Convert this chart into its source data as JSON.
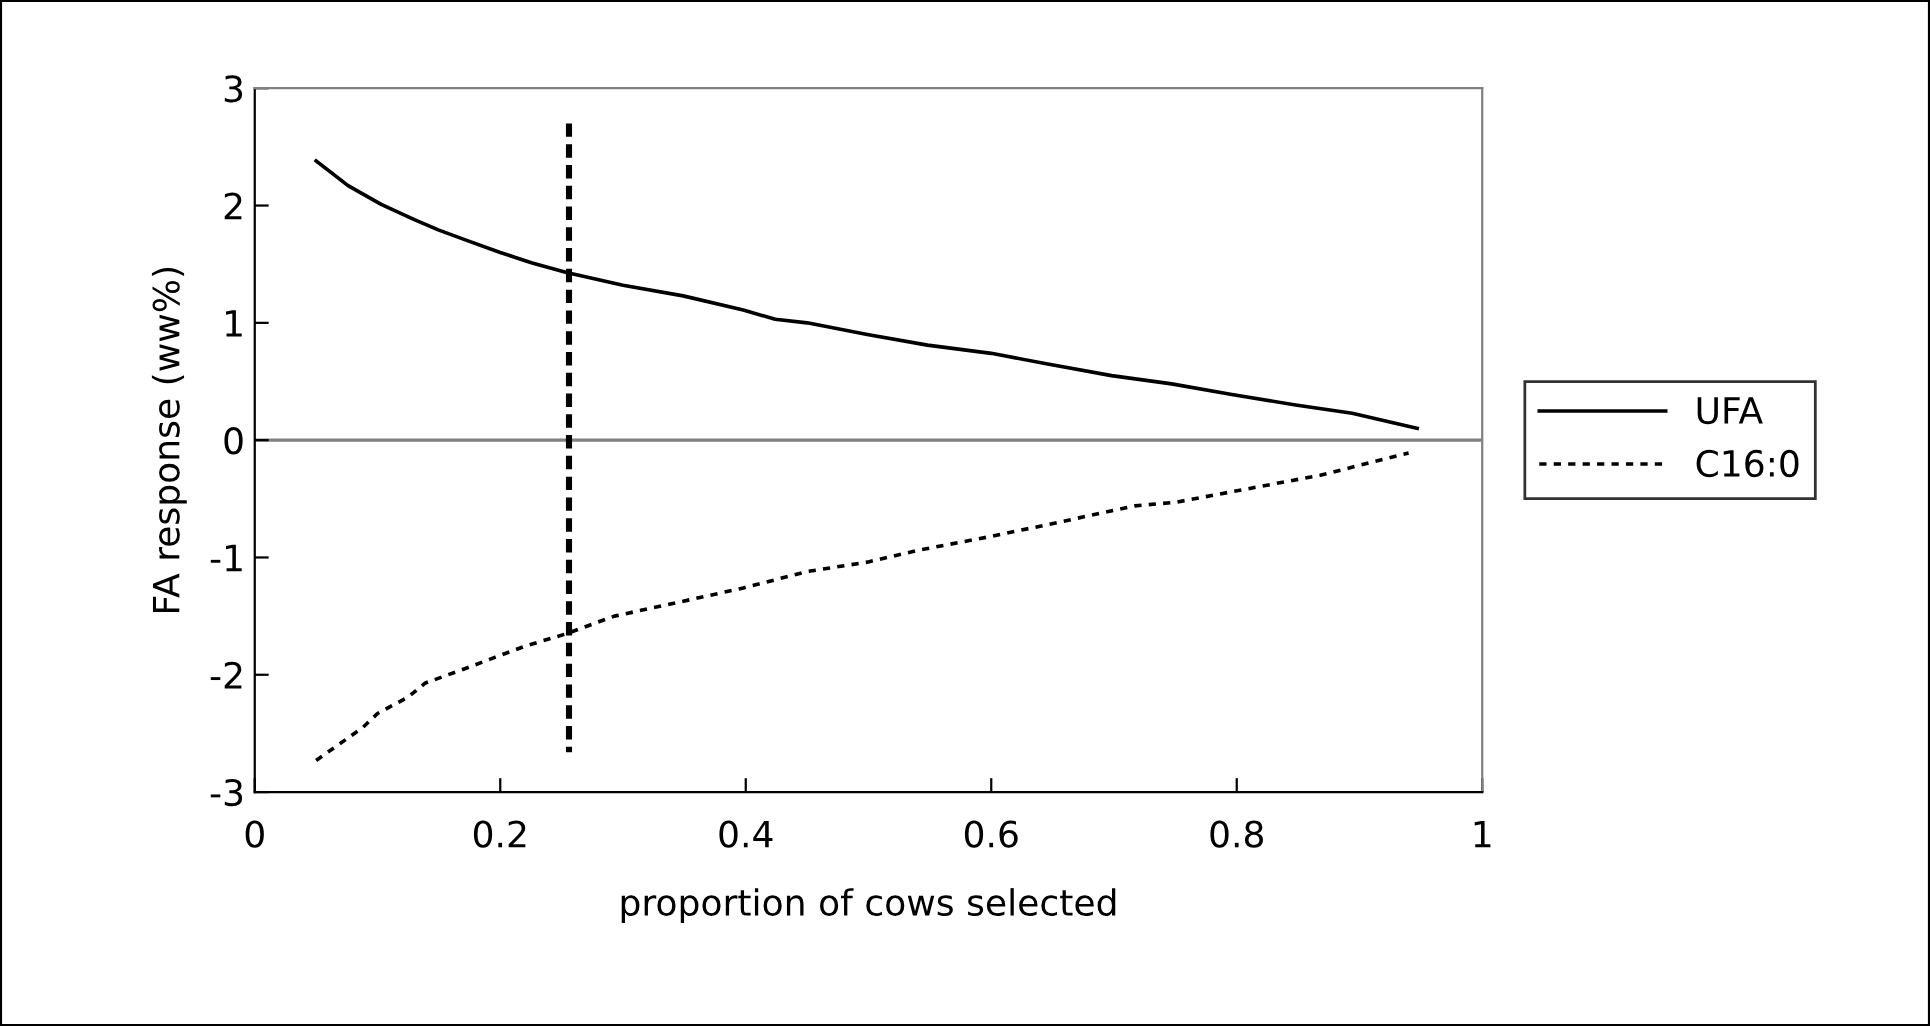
{
  "chart_data": {
    "type": "line",
    "xlabel": "proportion of cows selected",
    "ylabel": "FA response (ww%)",
    "xlim": [
      0,
      1
    ],
    "xticks": [
      0,
      0.2,
      0.4,
      0.6,
      0.8,
      1
    ],
    "ylim": [
      -3,
      3
    ],
    "yticks": [
      {
        "value": -3,
        "label": "-3"
      },
      {
        "value": -2,
        "label": "-2"
      },
      {
        "value": -1,
        "label": "-1"
      },
      0,
      1,
      2,
      3
    ],
    "grid": false,
    "legend": "right",
    "marker": "none",
    "ref_lines": [
      {
        "axis": "y",
        "value": 0,
        "color": "#808080",
        "line_style": "solid"
      }
    ],
    "series": [
      {
        "name": "UFA",
        "color": "#000000",
        "line_style": "solid",
        "x": [
          0.05,
          0.076,
          0.103,
          0.13,
          0.15,
          0.176,
          0.2,
          0.226,
          0.254,
          0.3,
          0.349,
          0.398,
          0.424,
          0.45,
          0.499,
          0.548,
          0.6,
          0.646,
          0.698,
          0.747,
          0.796,
          0.848,
          0.894,
          0.947
        ],
        "values": [
          2.38,
          2.17,
          2.01,
          1.88,
          1.79,
          1.69,
          1.6,
          1.51,
          1.43,
          1.32,
          1.23,
          1.11,
          1.03,
          1.0,
          0.9,
          0.81,
          0.74,
          0.65,
          0.55,
          0.48,
          0.39,
          0.3,
          0.23,
          0.1
        ]
      },
      {
        "name": "C16:0",
        "color": "#000000",
        "line_style": "dotted",
        "x": [
          0.05,
          0.088,
          0.1,
          0.125,
          0.139,
          0.176,
          0.196,
          0.222,
          0.254,
          0.293,
          0.346,
          0.398,
          0.45,
          0.499,
          0.54,
          0.6,
          0.646,
          0.717,
          0.75,
          0.796,
          0.842,
          0.868,
          0.913,
          0.94
        ],
        "values": [
          -2.73,
          -2.45,
          -2.33,
          -2.19,
          -2.07,
          -1.93,
          -1.85,
          -1.75,
          -1.65,
          -1.5,
          -1.38,
          -1.26,
          -1.12,
          -1.04,
          -0.94,
          -0.82,
          -0.72,
          -0.56,
          -0.53,
          -0.44,
          -0.35,
          -0.3,
          -0.18,
          -0.11
        ]
      },
      {
        "color": "#000000",
        "line_style": "dashed",
        "x": [
          0.256,
          0.256
        ],
        "values": [
          2.7,
          -2.66
        ]
      }
    ]
  }
}
